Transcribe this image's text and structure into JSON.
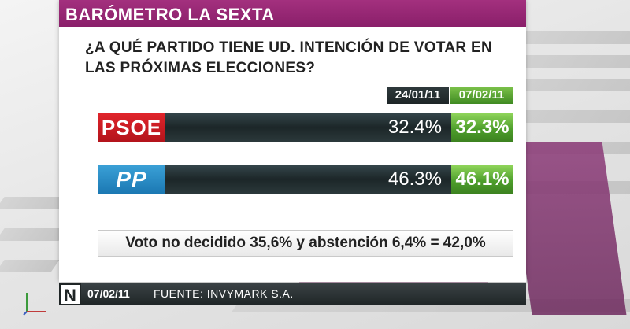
{
  "header": {
    "title": "BARÓMETRO LA SEXTA"
  },
  "question": "¿A QUÉ PARTIDO TIENE UD. INTENCIÓN DE VOTAR EN LAS PRÓXIMAS ELECCIONES?",
  "dates": {
    "previous": "24/01/11",
    "current": "07/02/11"
  },
  "parties": [
    {
      "name": "PSOE",
      "previous": "32.4%",
      "current": "32.3%",
      "logo_color": "#d71920"
    },
    {
      "name": "PP",
      "previous": "46.3%",
      "current": "46.1%",
      "logo_color": "#2a8cc9"
    }
  ],
  "note": "Voto no decidido 35,6% y abstención 6,4% = 42,0%",
  "footer": {
    "logo": "N",
    "date": "07/02/11",
    "source": "FUENTE: INVYMARK S.A."
  },
  "colors": {
    "brand": "#9a2775",
    "bar_dark": "#1f2a2c",
    "bar_green": "#4e9f2c"
  }
}
